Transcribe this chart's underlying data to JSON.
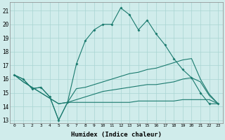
{
  "xlabel": "Humidex (Indice chaleur)",
  "x_values": [
    0,
    1,
    2,
    3,
    4,
    5,
    6,
    7,
    8,
    9,
    10,
    11,
    12,
    13,
    14,
    15,
    16,
    17,
    18,
    19,
    20,
    21,
    22,
    23
  ],
  "line1": [
    16.3,
    16.0,
    15.3,
    15.4,
    14.7,
    13.0,
    14.3,
    17.1,
    18.8,
    19.6,
    20.0,
    20.0,
    21.2,
    20.7,
    19.6,
    20.3,
    19.3,
    18.5,
    17.5,
    16.7,
    16.1,
    15.0,
    14.2,
    14.2
  ],
  "line2": [
    16.3,
    16.0,
    15.3,
    15.4,
    14.7,
    13.0,
    14.3,
    15.3,
    15.4,
    15.6,
    15.8,
    16.0,
    16.2,
    16.4,
    16.5,
    16.7,
    16.8,
    17.0,
    17.2,
    17.4,
    17.5,
    16.0,
    14.9,
    14.2
  ],
  "line3": [
    16.3,
    15.8,
    15.4,
    15.0,
    14.6,
    14.2,
    14.3,
    14.3,
    14.3,
    14.3,
    14.3,
    14.3,
    14.3,
    14.3,
    14.4,
    14.4,
    14.4,
    14.4,
    14.4,
    14.5,
    14.5,
    14.5,
    14.5,
    14.2
  ],
  "line4": [
    16.3,
    15.8,
    15.4,
    15.0,
    14.6,
    14.2,
    14.3,
    14.5,
    14.7,
    14.9,
    15.1,
    15.2,
    15.3,
    15.4,
    15.5,
    15.6,
    15.6,
    15.7,
    15.8,
    16.0,
    16.1,
    15.8,
    14.8,
    14.2
  ],
  "line_color": "#1a7a6e",
  "bg_color": "#d0eceb",
  "grid_color": "#a8d4d2",
  "ylim": [
    12.8,
    21.6
  ],
  "xlim": [
    -0.5,
    23.5
  ],
  "yticks": [
    13,
    14,
    15,
    16,
    17,
    18,
    19,
    20,
    21
  ],
  "xticks": [
    0,
    1,
    2,
    3,
    4,
    5,
    6,
    7,
    8,
    9,
    10,
    11,
    12,
    13,
    14,
    15,
    16,
    17,
    18,
    19,
    20,
    21,
    22,
    23
  ]
}
